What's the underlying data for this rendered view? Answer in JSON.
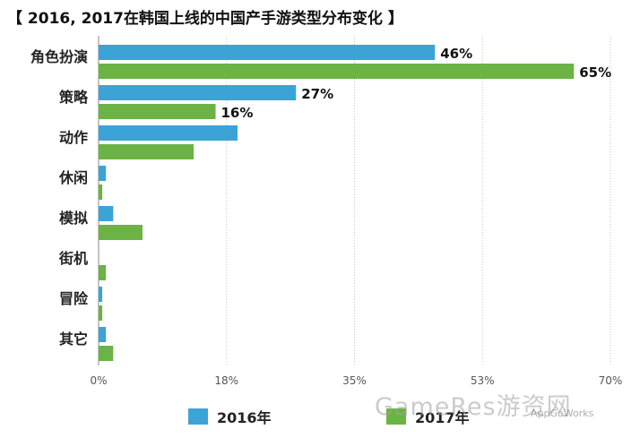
{
  "chart_data": {
    "type": "bar",
    "orientation": "horizontal",
    "title": "【 2016, 2017在韩国上线的中国产手游类型分布变化 】",
    "categories": [
      "角色扮演",
      "策略",
      "动作",
      "休闲",
      "模拟",
      "街机",
      "冒险",
      "其它"
    ],
    "series": [
      {
        "name": "2016年",
        "color": "#3ba3d6",
        "values": [
          46,
          27,
          19,
          1,
          2,
          0,
          0.5,
          1
        ],
        "labels": [
          "46%",
          "27%",
          "",
          "",
          "",
          "",
          "",
          ""
        ]
      },
      {
        "name": "2017年",
        "color": "#6ab344",
        "values": [
          65,
          16,
          13,
          0.5,
          6,
          1,
          0.5,
          2
        ],
        "labels": [
          "65%",
          "16%",
          "",
          "",
          "",
          "",
          "",
          ""
        ]
      }
    ],
    "xlim": [
      0,
      70
    ],
    "xticks": [
      0,
      17.5,
      35,
      52.5,
      70
    ],
    "xtick_labels": [
      "0%",
      "18%",
      "35%",
      "53%",
      "70%"
    ],
    "grid": true,
    "legend_position": "bottom"
  },
  "watermark": {
    "main": "GameRes游资网",
    "sub": "AppGaWorks"
  }
}
